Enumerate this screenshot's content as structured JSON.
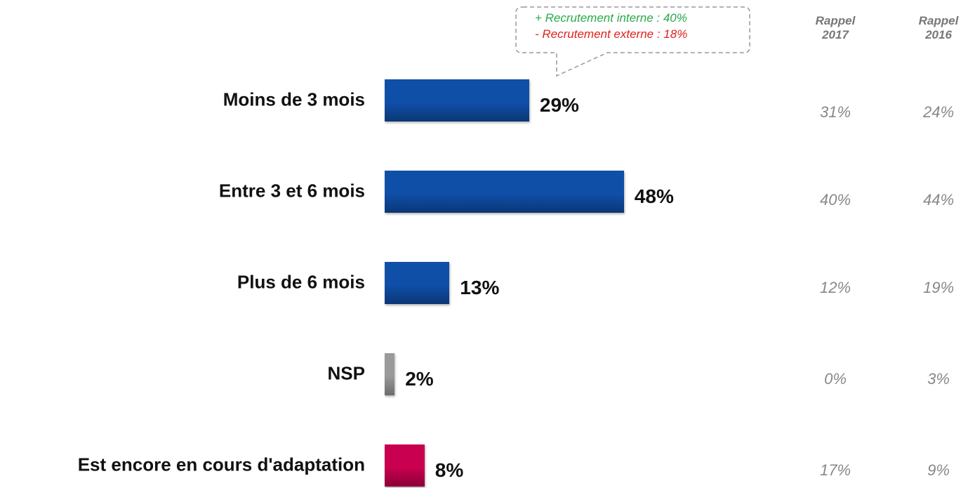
{
  "chart_data": {
    "type": "hbar",
    "categories": [
      "Moins de 3 mois",
      "Entre 3 et 6 mois",
      "Plus de 6 mois",
      "NSP",
      "Est encore en cours d'adaptation"
    ],
    "values": [
      29,
      48,
      13,
      2,
      8
    ],
    "value_labels": [
      "29%",
      "48%",
      "13%",
      "2%",
      "8%"
    ],
    "colors": [
      "#0f4fa8",
      "#0f4fa8",
      "#0f4fa8",
      "#9a9a9a",
      "#c8004f"
    ],
    "annotation": [
      {
        "text": "+ Recrutement interne : 40%",
        "color": "#2aa84a"
      },
      {
        "text": "- Recrutement externe : 18%",
        "color": "#e0201c"
      }
    ],
    "recalls": [
      {
        "name": "Rappel 2017",
        "values": [
          31,
          40,
          12,
          0,
          17
        ],
        "value_labels": [
          "31%",
          "40%",
          "12%",
          "0%",
          "17%"
        ]
      },
      {
        "name": "Rappel 2016",
        "values": [
          24,
          44,
          19,
          3,
          9
        ],
        "value_labels": [
          "24%",
          "44%",
          "19%",
          "3%",
          "9%"
        ]
      }
    ]
  }
}
